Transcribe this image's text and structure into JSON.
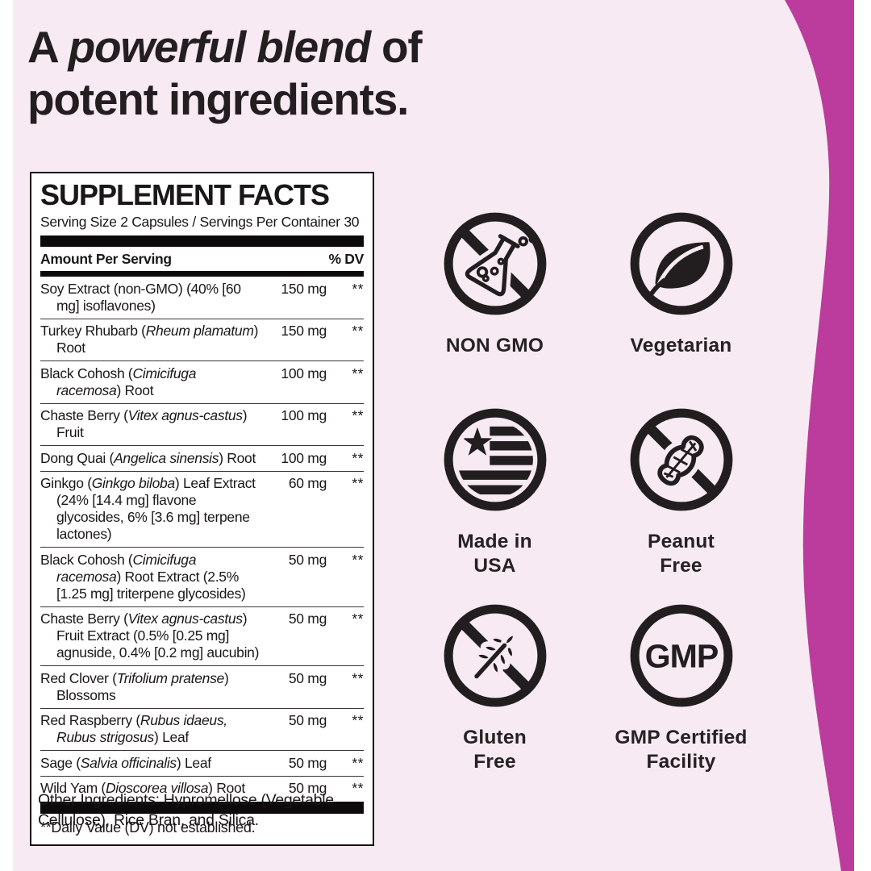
{
  "page": {
    "background": "#f8eaf3",
    "accent_magenta": "#bb3c9d",
    "ink": "#221e1f",
    "margin_white": "#ffffff"
  },
  "headline": {
    "prefix": "A ",
    "emphasis": "powerful blend",
    "suffix": " of",
    "line2": "potent ingredients."
  },
  "supplement_facts": {
    "title": "SUPPLEMENT FACTS",
    "serving_line": "Serving Size 2 Capsules / Servings Per Container 30",
    "columns": {
      "amount": "Amount Per Serving",
      "dv": "% DV"
    },
    "rows": [
      {
        "segments": [
          {
            "text": "Soy Extract (non-GMO) (40% [60 mg] isoflavones)",
            "italic": false
          }
        ],
        "amount": "150 mg",
        "dv": "**"
      },
      {
        "segments": [
          {
            "text": "Turkey Rhubarb (",
            "italic": false
          },
          {
            "text": "Rheum plamatum",
            "italic": true
          },
          {
            "text": ") Root",
            "italic": false
          }
        ],
        "amount": "150 mg",
        "dv": "**"
      },
      {
        "segments": [
          {
            "text": "Black Cohosh (",
            "italic": false
          },
          {
            "text": "Cimicifuga racemosa",
            "italic": true
          },
          {
            "text": ") Root",
            "italic": false
          }
        ],
        "amount": "100 mg",
        "dv": "**"
      },
      {
        "segments": [
          {
            "text": "Chaste Berry (",
            "italic": false
          },
          {
            "text": "Vitex agnus-castus",
            "italic": true
          },
          {
            "text": ") Fruit",
            "italic": false
          }
        ],
        "amount": "100 mg",
        "dv": "**"
      },
      {
        "segments": [
          {
            "text": "Dong Quai (",
            "italic": false
          },
          {
            "text": "Angelica sinensis",
            "italic": true
          },
          {
            "text": ") Root",
            "italic": false
          }
        ],
        "amount": "100 mg",
        "dv": "**"
      },
      {
        "segments": [
          {
            "text": "Ginkgo (",
            "italic": false
          },
          {
            "text": "Ginkgo biloba",
            "italic": true
          },
          {
            "text": ") Leaf Extract (24% [14.4 mg] flavone glycosides, 6% [3.6 mg] terpene lactones)",
            "italic": false
          }
        ],
        "amount": "60 mg",
        "dv": "**"
      },
      {
        "segments": [
          {
            "text": "Black Cohosh (",
            "italic": false
          },
          {
            "text": "Cimicifuga racemosa",
            "italic": true
          },
          {
            "text": ") Root Extract (2.5% [1.25 mg] triterpene glycosides)",
            "italic": false
          }
        ],
        "amount": "50 mg",
        "dv": "**"
      },
      {
        "segments": [
          {
            "text": "Chaste Berry (",
            "italic": false
          },
          {
            "text": "Vitex agnus-castus",
            "italic": true
          },
          {
            "text": ") Fruit Extract (0.5% [0.25 mg] agnuside, 0.4% [0.2 mg] aucubin)",
            "italic": false
          }
        ],
        "amount": "50 mg",
        "dv": "**"
      },
      {
        "segments": [
          {
            "text": "Red Clover (",
            "italic": false
          },
          {
            "text": "Trifolium pratense",
            "italic": true
          },
          {
            "text": ") Blossoms",
            "italic": false
          }
        ],
        "amount": "50 mg",
        "dv": "**"
      },
      {
        "segments": [
          {
            "text": "Red Raspberry (",
            "italic": false
          },
          {
            "text": "Rubus idaeus, Rubus strigosus",
            "italic": true
          },
          {
            "text": ") Leaf",
            "italic": false
          }
        ],
        "amount": "50 mg",
        "dv": "**"
      },
      {
        "segments": [
          {
            "text": "Sage (",
            "italic": false
          },
          {
            "text": "Salvia officinalis",
            "italic": true
          },
          {
            "text": ") Leaf",
            "italic": false
          }
        ],
        "amount": "50 mg",
        "dv": "**"
      },
      {
        "segments": [
          {
            "text": "Wild Yam (",
            "italic": false
          },
          {
            "text": "Dioscorea villosa",
            "italic": true
          },
          {
            "text": ") Root",
            "italic": false
          }
        ],
        "amount": "50 mg",
        "dv": "**"
      }
    ],
    "footnote": "**Daily Value (DV) not established."
  },
  "other_ingredients": "Other Ingredients: Hypromellose (Vegetable Cellulose), Rice Bran, and Silica.",
  "badges": [
    {
      "icon": "non-gmo-icon",
      "label_lines": [
        "NON GMO"
      ]
    },
    {
      "icon": "vegetarian-leaf-icon",
      "label_lines": [
        "Vegetarian"
      ]
    },
    {
      "icon": "made-in-usa-flag-icon",
      "label_lines": [
        "Made in",
        "USA"
      ]
    },
    {
      "icon": "peanut-free-icon",
      "label_lines": [
        "Peanut",
        "Free"
      ]
    },
    {
      "icon": "gluten-free-icon",
      "label_lines": [
        "Gluten",
        "Free"
      ]
    },
    {
      "icon": "gmp-icon",
      "label_lines": [
        "GMP Certified",
        "Facility"
      ]
    }
  ]
}
